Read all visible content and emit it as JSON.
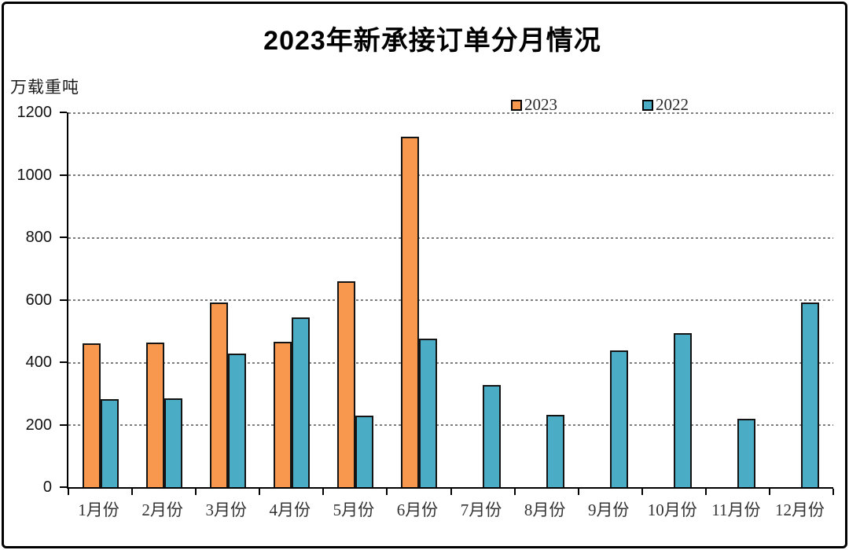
{
  "title": "2023年新承接订单分月情况",
  "y_axis_unit_label": "万载重吨",
  "legend": {
    "items": [
      {
        "label": "2023",
        "color": "#F7984E"
      },
      {
        "label": "2022",
        "color": "#4BACC6"
      }
    ]
  },
  "colors": {
    "bar_2023": "#F7984E",
    "bar_2022": "#4BACC6",
    "bar_border": "#141414",
    "axis": "#000000",
    "gridline": "#7e7e7e",
    "background": "#ffffff"
  },
  "chart_data": {
    "type": "bar",
    "title": "2023年新承接订单分月情况",
    "ylabel": "万载重吨",
    "xlabel": "",
    "categories": [
      "1月份",
      "2月份",
      "3月份",
      "4月份",
      "5月份",
      "6月份",
      "7月份",
      "8月份",
      "9月份",
      "10月份",
      "11月份",
      "12月份"
    ],
    "series": [
      {
        "name": "2023",
        "color": "#F7984E",
        "values": [
          460,
          463,
          591,
          465,
          659,
          1122,
          null,
          null,
          null,
          null,
          null,
          null
        ]
      },
      {
        "name": "2022",
        "color": "#4BACC6",
        "values": [
          281,
          284,
          428,
          543,
          229,
          476,
          327,
          232,
          438,
          493,
          220,
          591
        ]
      }
    ],
    "ylim": [
      0,
      1200
    ],
    "yticks": [
      0,
      200,
      400,
      600,
      800,
      1000,
      1200
    ],
    "grid": "horizontal-dashed",
    "legend_position": "top-center"
  }
}
